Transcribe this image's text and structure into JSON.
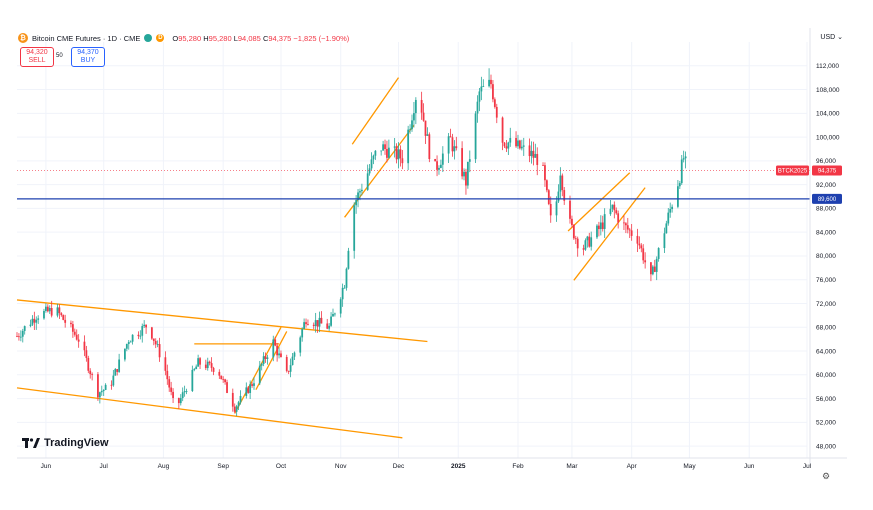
{
  "header": {
    "coin_glyph": "₿",
    "title": "Bitcoin CME Futures · 1D · CME",
    "live_dot_color": "#26a69a",
    "d_badge": "D",
    "o_label": "O",
    "o_value": "95,280",
    "h_label": "H",
    "h_value": "95,280",
    "l_label": "L",
    "l_value": "94,085",
    "c_label": "C",
    "c_value": "94,375",
    "change": "−1,825 (−1.90%)"
  },
  "trade": {
    "sell_price": "94,320",
    "sell_label": "SELL",
    "spread": "50",
    "buy_price": "94,370",
    "buy_label": "BUY"
  },
  "currency": "USD",
  "watermark": "TradingView",
  "colors": {
    "up": "#26a69a",
    "down": "#f23645",
    "trend": "#ff9800",
    "hline": "#1e40af"
  },
  "chart_data": {
    "type": "candlestick",
    "title": "Bitcoin CME Futures · 1D · CME",
    "ylim": [
      46000,
      116000
    ],
    "y_ticks": [
      48000,
      52000,
      56000,
      60000,
      64000,
      68000,
      72000,
      76000,
      80000,
      84000,
      88000,
      92000,
      96000,
      100000,
      104000,
      108000,
      112000
    ],
    "y_tick_labels": [
      "48,000",
      "52,000",
      "56,000",
      "60,000",
      "64,000",
      "68,000",
      "72,000",
      "76,000",
      "80,000",
      "84,000",
      "88,000",
      "92,000",
      "96,000",
      "100,000",
      "104,000",
      "108,000",
      "112,000"
    ],
    "x_range_days": [
      0,
      410
    ],
    "x_ticks": [
      {
        "label": "Jun",
        "day": 15
      },
      {
        "label": "Jul",
        "day": 45
      },
      {
        "label": "Aug",
        "day": 76
      },
      {
        "label": "Sep",
        "day": 107
      },
      {
        "label": "Oct",
        "day": 137
      },
      {
        "label": "Nov",
        "day": 168
      },
      {
        "label": "Dec",
        "day": 198
      },
      {
        "label": "2025",
        "day": 229
      },
      {
        "label": "Feb",
        "day": 260
      },
      {
        "label": "Mar",
        "day": 288
      },
      {
        "label": "Apr",
        "day": 319
      },
      {
        "label": "May",
        "day": 349
      },
      {
        "label": "Jun",
        "day": 380
      },
      {
        "label": "Jul",
        "day": 410
      }
    ],
    "closes": [
      {
        "day": 0,
        "close": 66500
      },
      {
        "day": 10,
        "close": 70000
      },
      {
        "day": 20,
        "close": 71000
      },
      {
        "day": 32,
        "close": 66000
      },
      {
        "day": 42,
        "close": 57000
      },
      {
        "day": 48,
        "close": 58000
      },
      {
        "day": 58,
        "close": 66000
      },
      {
        "day": 68,
        "close": 68500
      },
      {
        "day": 76,
        "close": 62000
      },
      {
        "day": 82,
        "close": 54000
      },
      {
        "day": 94,
        "close": 62000
      },
      {
        "day": 104,
        "close": 61000
      },
      {
        "day": 113,
        "close": 54500
      },
      {
        "day": 122,
        "close": 58500
      },
      {
        "day": 133,
        "close": 65500
      },
      {
        "day": 140,
        "close": 60000
      },
      {
        "day": 150,
        "close": 69500
      },
      {
        "day": 162,
        "close": 68000
      },
      {
        "day": 170,
        "close": 75500
      },
      {
        "day": 174,
        "close": 88000
      },
      {
        "day": 188,
        "close": 98500
      },
      {
        "day": 200,
        "close": 96500
      },
      {
        "day": 208,
        "close": 108500
      },
      {
        "day": 216,
        "close": 94000
      },
      {
        "day": 225,
        "close": 99500
      },
      {
        "day": 233,
        "close": 92500
      },
      {
        "day": 240,
        "close": 107500
      },
      {
        "day": 246,
        "close": 109000
      },
      {
        "day": 252,
        "close": 99500
      },
      {
        "day": 262,
        "close": 98000
      },
      {
        "day": 272,
        "close": 96000
      },
      {
        "day": 278,
        "close": 84000
      },
      {
        "day": 282,
        "close": 94500
      },
      {
        "day": 286,
        "close": 86000
      },
      {
        "day": 293,
        "close": 81000
      },
      {
        "day": 302,
        "close": 84500
      },
      {
        "day": 309,
        "close": 88000
      },
      {
        "day": 315,
        "close": 85000
      },
      {
        "day": 322,
        "close": 83000
      },
      {
        "day": 329,
        "close": 76000
      },
      {
        "day": 337,
        "close": 85500
      },
      {
        "day": 344,
        "close": 93500
      },
      {
        "day": 346,
        "close": 96500
      },
      {
        "day": 348,
        "close": 94375
      }
    ],
    "current_price_label": {
      "text": "BTCK2025",
      "value": "94,375",
      "price": 94375
    },
    "horizontal_line": {
      "price": 89600,
      "label": "89,600"
    },
    "trendlines": [
      {
        "from": [
          0,
          72600
        ],
        "to": [
          213,
          65600
        ]
      },
      {
        "from": [
          0,
          57800
        ],
        "to": [
          200,
          49400
        ]
      },
      {
        "from": [
          92,
          65200
        ],
        "to": [
          136,
          65200
        ]
      },
      {
        "from": [
          113,
          53500
        ],
        "to": [
          137,
          68000
        ]
      },
      {
        "from": [
          124,
          57500
        ],
        "to": [
          140,
          67300
        ]
      },
      {
        "from": [
          174,
          98800
        ],
        "to": [
          198,
          110000
        ]
      },
      {
        "from": [
          170,
          86500
        ],
        "to": [
          206,
          102000
        ]
      },
      {
        "from": [
          286,
          84200
        ],
        "to": [
          318,
          94000
        ]
      },
      {
        "from": [
          289,
          75900
        ],
        "to": [
          326,
          91500
        ]
      }
    ]
  }
}
